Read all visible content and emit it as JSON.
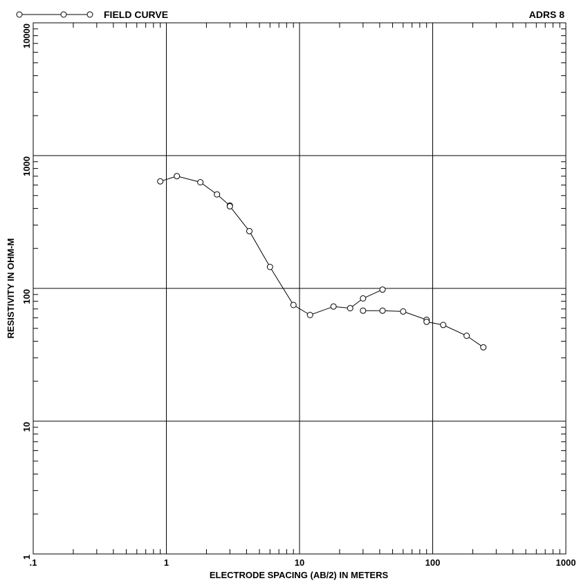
{
  "chart_data": {
    "type": "line",
    "title": "ADRS 8",
    "xlabel": "ELECTRODE SPACING (AB/2) IN METERS",
    "ylabel": "RESISTIVITY IN OHM-M",
    "xscale": "log",
    "yscale": "log",
    "xlim": [
      0.1,
      1000
    ],
    "ylim": [
      1,
      10000
    ],
    "x_tick_labels": [
      ".1",
      "1",
      "10",
      "100",
      "1000"
    ],
    "y_tick_labels": [
      "1",
      "10",
      "100",
      "1000",
      "10000"
    ],
    "grid": true,
    "legend_position": "top-left",
    "series": [
      {
        "name": "FIELD CURVE",
        "segments": [
          [
            [
              0.9,
              640
            ],
            [
              1.2,
              700
            ],
            [
              1.8,
              630
            ],
            [
              2.4,
              510
            ],
            [
              3.0,
              420
            ],
            [
              3.0,
              415
            ],
            [
              4.2,
              270
            ],
            [
              6.0,
              145
            ],
            [
              9.0,
              75
            ],
            [
              12.0,
              63
            ],
            [
              18.0,
              73
            ],
            [
              24.0,
              71
            ],
            [
              30.0,
              84
            ],
            [
              42.0,
              98
            ]
          ],
          [
            [
              30.0,
              68
            ],
            [
              42.0,
              68
            ],
            [
              60.0,
              67
            ],
            [
              90.0,
              58
            ],
            [
              90.0,
              56
            ],
            [
              120.0,
              53
            ],
            [
              180.0,
              44
            ],
            [
              240.0,
              36
            ]
          ]
        ]
      }
    ]
  }
}
